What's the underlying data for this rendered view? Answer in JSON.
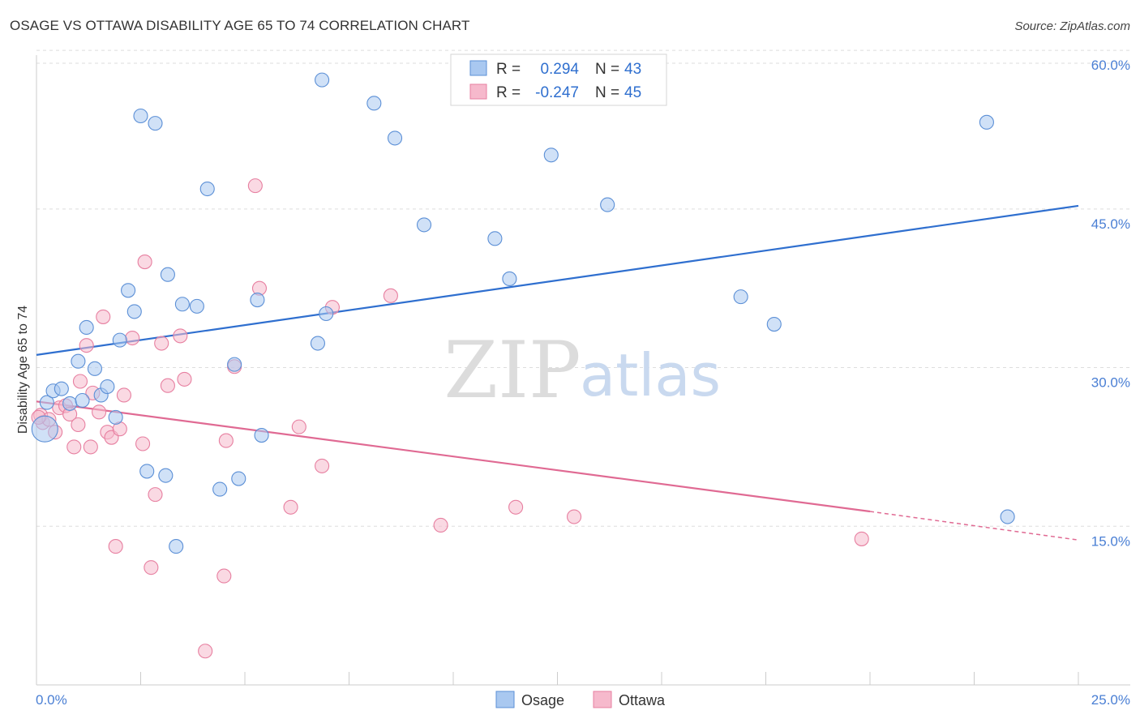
{
  "title": "OSAGE VS OTTAWA DISABILITY AGE 65 TO 74 CORRELATION CHART",
  "source": "Source: ZipAtlas.com",
  "watermark": {
    "zip": "ZIP",
    "atlas": "atlas"
  },
  "stats": [
    {
      "r_label": "R =",
      "r_value": "0.294",
      "n_label": "N =",
      "n_value": "43"
    },
    {
      "r_label": "R =",
      "r_value": "-0.247",
      "n_label": "N =",
      "n_value": "45"
    }
  ],
  "chart_data": {
    "type": "scatter",
    "title": "OSAGE VS OTTAWA DISABILITY AGE 65 TO 74 CORRELATION CHART",
    "xlabel": "",
    "ylabel": "Disability Age 65 to 74",
    "xlim": [
      0,
      25
    ],
    "ylim": [
      0,
      62
    ],
    "x_tick_labels": [
      "0.0%",
      "25.0%"
    ],
    "y_ticks": [
      15,
      30,
      45,
      60
    ],
    "y_tick_labels": [
      "15.0%",
      "30.0%",
      "45.0%",
      "60.0%"
    ],
    "legend_position": "bottom-center",
    "colors": {
      "osage_fill": "#a9c8f0",
      "osage_stroke": "#5b8fd6",
      "osage_line": "#2f6fcf",
      "ottawa_fill": "#f6b9cc",
      "ottawa_stroke": "#e77fa0",
      "ottawa_line": "#e06a93"
    },
    "series": [
      {
        "name": "Osage",
        "r": 0.294,
        "n": 43,
        "trend": {
          "x0": 0,
          "y0": 31.2,
          "x1": 25,
          "y1": 45.3
        },
        "points": [
          [
            0.2,
            24.2
          ],
          [
            0.25,
            26.7
          ],
          [
            0.4,
            27.8
          ],
          [
            0.6,
            28.0
          ],
          [
            0.8,
            26.6
          ],
          [
            1.0,
            30.6
          ],
          [
            1.1,
            26.9
          ],
          [
            1.2,
            33.8
          ],
          [
            1.4,
            29.9
          ],
          [
            1.55,
            27.4
          ],
          [
            1.7,
            28.2
          ],
          [
            1.9,
            25.3
          ],
          [
            2.0,
            32.6
          ],
          [
            2.2,
            37.3
          ],
          [
            2.35,
            35.3
          ],
          [
            2.5,
            53.8
          ],
          [
            2.65,
            20.2
          ],
          [
            2.85,
            53.1
          ],
          [
            3.1,
            19.8
          ],
          [
            3.15,
            38.8
          ],
          [
            3.35,
            13.1
          ],
          [
            3.5,
            36.0
          ],
          [
            3.85,
            35.8
          ],
          [
            4.1,
            46.9
          ],
          [
            4.4,
            18.5
          ],
          [
            4.75,
            30.3
          ],
          [
            4.85,
            19.5
          ],
          [
            5.3,
            36.4
          ],
          [
            5.4,
            23.6
          ],
          [
            6.75,
            32.3
          ],
          [
            6.85,
            57.2
          ],
          [
            6.95,
            35.1
          ],
          [
            8.1,
            55.0
          ],
          [
            8.6,
            51.7
          ],
          [
            9.3,
            43.5
          ],
          [
            11.0,
            42.2
          ],
          [
            11.35,
            38.4
          ],
          [
            12.35,
            50.1
          ],
          [
            13.7,
            45.4
          ],
          [
            16.9,
            36.7
          ],
          [
            17.7,
            34.1
          ],
          [
            22.8,
            53.2
          ],
          [
            23.3,
            15.9
          ]
        ]
      },
      {
        "name": "Ottawa",
        "r": -0.247,
        "n": 45,
        "trend": {
          "x0": 0,
          "y0": 26.8,
          "x1": 20,
          "y1": 16.4,
          "dash_x1": 25,
          "dash_y1": 13.7
        },
        "points": [
          [
            0.1,
            25.5
          ],
          [
            0.15,
            24.8
          ],
          [
            0.3,
            25.1
          ],
          [
            0.45,
            23.9
          ],
          [
            0.55,
            26.2
          ],
          [
            0.7,
            26.4
          ],
          [
            0.8,
            25.6
          ],
          [
            0.9,
            22.5
          ],
          [
            1.0,
            24.6
          ],
          [
            1.05,
            28.7
          ],
          [
            1.2,
            32.1
          ],
          [
            1.3,
            22.5
          ],
          [
            1.35,
            27.6
          ],
          [
            1.5,
            25.8
          ],
          [
            1.6,
            34.8
          ],
          [
            1.7,
            23.9
          ],
          [
            1.8,
            23.4
          ],
          [
            1.9,
            13.1
          ],
          [
            2.0,
            24.2
          ],
          [
            2.1,
            27.4
          ],
          [
            2.3,
            32.8
          ],
          [
            2.55,
            22.8
          ],
          [
            2.6,
            40.0
          ],
          [
            2.75,
            11.1
          ],
          [
            2.85,
            18.0
          ],
          [
            3.0,
            32.3
          ],
          [
            3.15,
            28.3
          ],
          [
            3.45,
            33.0
          ],
          [
            3.55,
            28.9
          ],
          [
            4.05,
            3.2
          ],
          [
            4.5,
            10.3
          ],
          [
            4.55,
            23.1
          ],
          [
            4.75,
            30.1
          ],
          [
            5.25,
            47.2
          ],
          [
            5.35,
            37.5
          ],
          [
            6.1,
            16.8
          ],
          [
            6.3,
            24.4
          ],
          [
            6.85,
            20.7
          ],
          [
            7.1,
            35.7
          ],
          [
            8.5,
            36.8
          ],
          [
            9.7,
            15.1
          ],
          [
            11.5,
            16.8
          ],
          [
            12.9,
            15.9
          ],
          [
            19.8,
            13.8
          ],
          [
            0.05,
            25.3
          ]
        ]
      }
    ]
  }
}
